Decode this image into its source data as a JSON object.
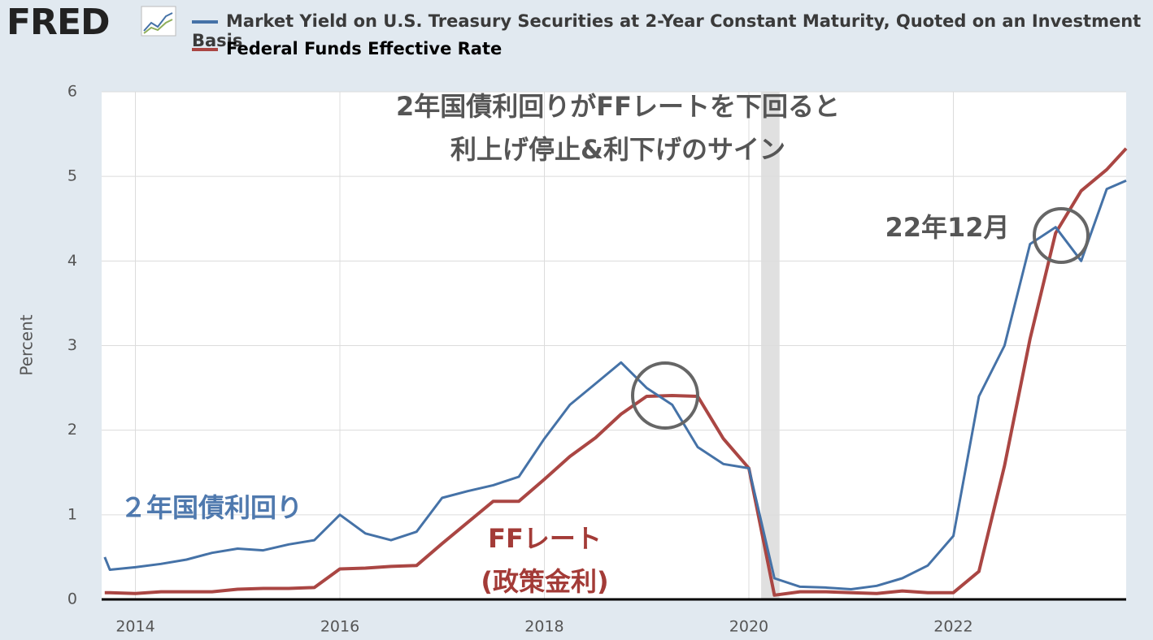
{
  "chart_data": {
    "type": "line",
    "logo": "FRED",
    "y_label": "Percent",
    "x": [
      2013.7,
      2013.75,
      2014.0,
      2014.25,
      2014.5,
      2014.75,
      2015.0,
      2015.25,
      2015.5,
      2015.75,
      2016.0,
      2016.25,
      2016.5,
      2016.75,
      2017.0,
      2017.25,
      2017.5,
      2017.75,
      2018.0,
      2018.25,
      2018.5,
      2018.75,
      2019.0,
      2019.25,
      2019.5,
      2019.75,
      2020.0,
      2020.25,
      2020.5,
      2020.75,
      2021.0,
      2021.25,
      2021.5,
      2021.75,
      2022.0,
      2022.25,
      2022.5,
      2022.75,
      2023.0,
      2023.25,
      2023.5,
      2023.69
    ],
    "series": [
      {
        "name": "Market Yield on U.S. Treasury Securities at 2-Year Constant Maturity, Quoted on an Investment Basis",
        "color": "#4572a7",
        "values": [
          0.5,
          0.35,
          0.38,
          0.42,
          0.47,
          0.55,
          0.6,
          0.58,
          0.65,
          0.7,
          1.0,
          0.78,
          0.7,
          0.8,
          1.2,
          1.28,
          1.35,
          1.45,
          1.9,
          2.3,
          2.55,
          2.8,
          2.5,
          2.3,
          1.8,
          1.6,
          1.55,
          0.25,
          0.15,
          0.14,
          0.12,
          0.16,
          0.25,
          0.4,
          0.75,
          2.4,
          3.0,
          4.2,
          4.4,
          4.0,
          4.85,
          4.95
        ]
      },
      {
        "name": "Federal Funds Effective Rate",
        "color": "#aa4643",
        "values": [
          0.08,
          0.08,
          0.07,
          0.09,
          0.09,
          0.09,
          0.12,
          0.13,
          0.13,
          0.14,
          0.36,
          0.37,
          0.39,
          0.4,
          0.66,
          0.91,
          1.16,
          1.16,
          1.42,
          1.69,
          1.91,
          2.19,
          2.4,
          2.41,
          2.4,
          1.9,
          1.55,
          0.05,
          0.09,
          0.09,
          0.08,
          0.07,
          0.1,
          0.08,
          0.08,
          0.33,
          1.58,
          3.08,
          4.33,
          4.83,
          5.08,
          5.33
        ]
      }
    ],
    "recession": [
      2020.12,
      2020.3
    ],
    "xlim": [
      2013.67,
      2023.69
    ],
    "xticks": [
      2014,
      2016,
      2018,
      2020,
      2022
    ],
    "ylim": [
      0,
      6
    ],
    "yticks": [
      0,
      1,
      2,
      3,
      4,
      5,
      6
    ],
    "grid": true,
    "annotations": [
      "2年国債利回りがFFレートを下回ると",
      "利上げ停止&利下げのサイン",
      "22年12月",
      "２年国債利回り",
      "FFレート",
      "(政策金利)"
    ]
  }
}
